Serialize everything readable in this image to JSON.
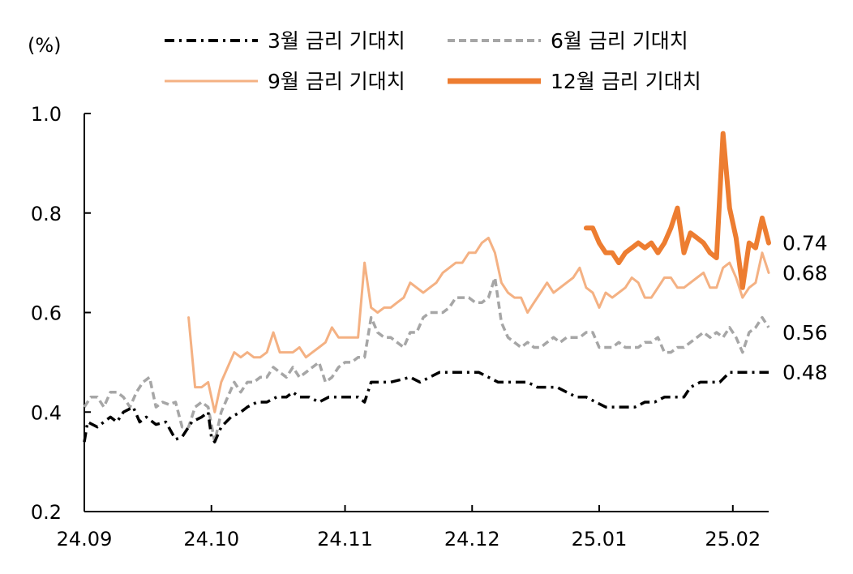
{
  "chart_data": {
    "type": "line",
    "unit": "(%)",
    "ylim": [
      0.2,
      1.0
    ],
    "yticks": [
      "0.2",
      "0.4",
      "0.6",
      "0.8",
      "1.0"
    ],
    "xticks": [
      "24.09",
      "24.10",
      "24.11",
      "24.12",
      "25.01",
      "25.02"
    ],
    "grid": false,
    "legend_position": "top",
    "series": [
      {
        "name": "3월 금리 기대치",
        "color": "#000000",
        "style": "dash-dot",
        "end_label": "0.48",
        "values": [
          [
            0,
            0.34
          ],
          [
            1,
            0.38
          ],
          [
            4,
            0.37
          ],
          [
            6,
            0.38
          ],
          [
            8,
            0.39
          ],
          [
            10,
            0.38
          ],
          [
            12,
            0.4
          ],
          [
            15,
            0.41
          ],
          [
            17,
            0.38
          ],
          [
            19,
            0.39
          ],
          [
            22,
            0.375
          ],
          [
            25,
            0.38
          ],
          [
            28,
            0.345
          ],
          [
            30,
            0.35
          ],
          [
            33,
            0.38
          ],
          [
            36,
            0.39
          ],
          [
            38,
            0.4
          ],
          [
            39,
            0.35
          ],
          [
            40,
            0.34
          ],
          [
            42,
            0.37
          ],
          [
            45,
            0.39
          ],
          [
            48,
            0.4
          ],
          [
            50,
            0.41
          ],
          [
            53,
            0.42
          ],
          [
            56,
            0.42
          ],
          [
            59,
            0.43
          ],
          [
            62,
            0.43
          ],
          [
            64,
            0.44
          ],
          [
            66,
            0.43
          ],
          [
            69,
            0.43
          ],
          [
            72,
            0.42
          ],
          [
            75,
            0.43
          ],
          [
            78,
            0.43
          ],
          [
            81,
            0.43
          ],
          [
            84,
            0.43
          ],
          [
            86,
            0.42
          ],
          [
            88,
            0.46
          ],
          [
            91,
            0.46
          ],
          [
            94,
            0.46
          ],
          [
            97,
            0.465
          ],
          [
            100,
            0.47
          ],
          [
            103,
            0.46
          ],
          [
            106,
            0.47
          ],
          [
            109,
            0.48
          ],
          [
            112,
            0.48
          ],
          [
            115,
            0.48
          ],
          [
            118,
            0.48
          ],
          [
            121,
            0.48
          ],
          [
            124,
            0.47
          ],
          [
            127,
            0.46
          ],
          [
            130,
            0.46
          ],
          [
            133,
            0.46
          ],
          [
            136,
            0.46
          ],
          [
            139,
            0.45
          ],
          [
            142,
            0.45
          ],
          [
            145,
            0.45
          ],
          [
            148,
            0.44
          ],
          [
            151,
            0.43
          ],
          [
            154,
            0.43
          ],
          [
            157,
            0.42
          ],
          [
            160,
            0.41
          ],
          [
            163,
            0.41
          ],
          [
            166,
            0.41
          ],
          [
            169,
            0.41
          ],
          [
            172,
            0.42
          ],
          [
            175,
            0.42
          ],
          [
            178,
            0.43
          ],
          [
            181,
            0.43
          ],
          [
            184,
            0.43
          ],
          [
            186,
            0.45
          ],
          [
            189,
            0.46
          ],
          [
            192,
            0.46
          ],
          [
            195,
            0.46
          ],
          [
            198,
            0.48
          ],
          [
            201,
            0.48
          ],
          [
            204,
            0.48
          ],
          [
            207,
            0.48
          ],
          [
            210,
            0.48
          ]
        ]
      },
      {
        "name": "6월 금리 기대치",
        "color": "#a6a6a6",
        "style": "dashed",
        "end_label": "0.56",
        "values": [
          [
            0,
            0.41
          ],
          [
            2,
            0.43
          ],
          [
            4,
            0.43
          ],
          [
            6,
            0.41
          ],
          [
            8,
            0.44
          ],
          [
            10,
            0.44
          ],
          [
            12,
            0.43
          ],
          [
            14,
            0.41
          ],
          [
            16,
            0.44
          ],
          [
            18,
            0.46
          ],
          [
            20,
            0.47
          ],
          [
            22,
            0.41
          ],
          [
            24,
            0.42
          ],
          [
            26,
            0.415
          ],
          [
            28,
            0.42
          ],
          [
            30,
            0.37
          ],
          [
            32,
            0.37
          ],
          [
            34,
            0.41
          ],
          [
            36,
            0.42
          ],
          [
            38,
            0.41
          ],
          [
            40,
            0.34
          ],
          [
            42,
            0.4
          ],
          [
            44,
            0.43
          ],
          [
            46,
            0.46
          ],
          [
            48,
            0.44
          ],
          [
            50,
            0.46
          ],
          [
            52,
            0.46
          ],
          [
            54,
            0.47
          ],
          [
            56,
            0.47
          ],
          [
            58,
            0.49
          ],
          [
            60,
            0.48
          ],
          [
            62,
            0.47
          ],
          [
            64,
            0.49
          ],
          [
            66,
            0.47
          ],
          [
            68,
            0.48
          ],
          [
            70,
            0.49
          ],
          [
            72,
            0.5
          ],
          [
            74,
            0.46
          ],
          [
            76,
            0.47
          ],
          [
            78,
            0.49
          ],
          [
            80,
            0.5
          ],
          [
            82,
            0.5
          ],
          [
            84,
            0.51
          ],
          [
            86,
            0.51
          ],
          [
            88,
            0.59
          ],
          [
            90,
            0.56
          ],
          [
            92,
            0.55
          ],
          [
            94,
            0.55
          ],
          [
            96,
            0.54
          ],
          [
            98,
            0.53
          ],
          [
            100,
            0.56
          ],
          [
            102,
            0.56
          ],
          [
            104,
            0.59
          ],
          [
            106,
            0.6
          ],
          [
            108,
            0.6
          ],
          [
            110,
            0.6
          ],
          [
            112,
            0.61
          ],
          [
            114,
            0.63
          ],
          [
            116,
            0.63
          ],
          [
            118,
            0.63
          ],
          [
            120,
            0.62
          ],
          [
            122,
            0.62
          ],
          [
            124,
            0.63
          ],
          [
            126,
            0.67
          ],
          [
            128,
            0.58
          ],
          [
            130,
            0.55
          ],
          [
            132,
            0.54
          ],
          [
            134,
            0.53
          ],
          [
            136,
            0.54
          ],
          [
            138,
            0.53
          ],
          [
            140,
            0.53
          ],
          [
            142,
            0.54
          ],
          [
            144,
            0.55
          ],
          [
            146,
            0.54
          ],
          [
            148,
            0.55
          ],
          [
            150,
            0.55
          ],
          [
            152,
            0.55
          ],
          [
            154,
            0.56
          ],
          [
            156,
            0.56
          ],
          [
            158,
            0.53
          ],
          [
            160,
            0.53
          ],
          [
            162,
            0.53
          ],
          [
            164,
            0.54
          ],
          [
            166,
            0.53
          ],
          [
            168,
            0.53
          ],
          [
            170,
            0.53
          ],
          [
            172,
            0.54
          ],
          [
            174,
            0.54
          ],
          [
            176,
            0.55
          ],
          [
            178,
            0.52
          ],
          [
            180,
            0.52
          ],
          [
            182,
            0.53
          ],
          [
            184,
            0.53
          ],
          [
            186,
            0.54
          ],
          [
            188,
            0.55
          ],
          [
            190,
            0.56
          ],
          [
            192,
            0.55
          ],
          [
            194,
            0.56
          ],
          [
            196,
            0.55
          ],
          [
            198,
            0.57
          ],
          [
            200,
            0.55
          ],
          [
            202,
            0.52
          ],
          [
            204,
            0.56
          ],
          [
            206,
            0.57
          ],
          [
            208,
            0.59
          ],
          [
            210,
            0.57
          ]
        ]
      },
      {
        "name": "9월 금리 기대치",
        "color": "#f4b183",
        "style": "solid-thin",
        "end_label": "0.68",
        "values": [
          [
            32,
            0.59
          ],
          [
            34,
            0.45
          ],
          [
            36,
            0.45
          ],
          [
            38,
            0.46
          ],
          [
            40,
            0.4
          ],
          [
            42,
            0.46
          ],
          [
            44,
            0.49
          ],
          [
            46,
            0.52
          ],
          [
            48,
            0.51
          ],
          [
            50,
            0.52
          ],
          [
            52,
            0.51
          ],
          [
            54,
            0.51
          ],
          [
            56,
            0.52
          ],
          [
            58,
            0.56
          ],
          [
            60,
            0.52
          ],
          [
            62,
            0.52
          ],
          [
            64,
            0.52
          ],
          [
            66,
            0.53
          ],
          [
            68,
            0.51
          ],
          [
            70,
            0.52
          ],
          [
            72,
            0.53
          ],
          [
            74,
            0.54
          ],
          [
            76,
            0.57
          ],
          [
            78,
            0.55
          ],
          [
            80,
            0.55
          ],
          [
            82,
            0.55
          ],
          [
            84,
            0.55
          ],
          [
            86,
            0.7
          ],
          [
            88,
            0.61
          ],
          [
            90,
            0.6
          ],
          [
            92,
            0.61
          ],
          [
            94,
            0.61
          ],
          [
            96,
            0.62
          ],
          [
            98,
            0.63
          ],
          [
            100,
            0.66
          ],
          [
            102,
            0.65
          ],
          [
            104,
            0.64
          ],
          [
            106,
            0.65
          ],
          [
            108,
            0.66
          ],
          [
            110,
            0.68
          ],
          [
            112,
            0.69
          ],
          [
            114,
            0.7
          ],
          [
            116,
            0.7
          ],
          [
            118,
            0.72
          ],
          [
            120,
            0.72
          ],
          [
            122,
            0.74
          ],
          [
            124,
            0.75
          ],
          [
            126,
            0.72
          ],
          [
            128,
            0.66
          ],
          [
            130,
            0.64
          ],
          [
            132,
            0.63
          ],
          [
            134,
            0.63
          ],
          [
            136,
            0.6
          ],
          [
            138,
            0.62
          ],
          [
            140,
            0.64
          ],
          [
            142,
            0.66
          ],
          [
            144,
            0.64
          ],
          [
            146,
            0.65
          ],
          [
            148,
            0.66
          ],
          [
            150,
            0.67
          ],
          [
            152,
            0.69
          ],
          [
            154,
            0.65
          ],
          [
            156,
            0.64
          ],
          [
            158,
            0.61
          ],
          [
            160,
            0.64
          ],
          [
            162,
            0.63
          ],
          [
            164,
            0.64
          ],
          [
            166,
            0.65
          ],
          [
            168,
            0.67
          ],
          [
            170,
            0.66
          ],
          [
            172,
            0.63
          ],
          [
            174,
            0.63
          ],
          [
            176,
            0.65
          ],
          [
            178,
            0.67
          ],
          [
            180,
            0.67
          ],
          [
            182,
            0.65
          ],
          [
            184,
            0.65
          ],
          [
            186,
            0.66
          ],
          [
            188,
            0.67
          ],
          [
            190,
            0.68
          ],
          [
            192,
            0.65
          ],
          [
            194,
            0.65
          ],
          [
            196,
            0.69
          ],
          [
            198,
            0.7
          ],
          [
            200,
            0.67
          ],
          [
            202,
            0.63
          ],
          [
            204,
            0.65
          ],
          [
            206,
            0.66
          ],
          [
            208,
            0.72
          ],
          [
            210,
            0.68
          ]
        ]
      },
      {
        "name": "12월 금리 기대치",
        "color": "#ed7d31",
        "style": "solid-thick",
        "end_label": "0.74",
        "values": [
          [
            154,
            0.77
          ],
          [
            156,
            0.77
          ],
          [
            158,
            0.74
          ],
          [
            160,
            0.72
          ],
          [
            162,
            0.72
          ],
          [
            164,
            0.7
          ],
          [
            166,
            0.72
          ],
          [
            168,
            0.73
          ],
          [
            170,
            0.74
          ],
          [
            172,
            0.73
          ],
          [
            174,
            0.74
          ],
          [
            176,
            0.72
          ],
          [
            178,
            0.74
          ],
          [
            180,
            0.77
          ],
          [
            182,
            0.81
          ],
          [
            184,
            0.72
          ],
          [
            186,
            0.76
          ],
          [
            188,
            0.75
          ],
          [
            190,
            0.74
          ],
          [
            192,
            0.72
          ],
          [
            194,
            0.71
          ],
          [
            196,
            0.96
          ],
          [
            198,
            0.81
          ],
          [
            200,
            0.75
          ],
          [
            202,
            0.65
          ],
          [
            204,
            0.74
          ],
          [
            206,
            0.73
          ],
          [
            208,
            0.79
          ],
          [
            210,
            0.74
          ]
        ]
      }
    ]
  },
  "legend": {
    "items": [
      {
        "label": "3월 금리 기대치",
        "icon": "dash-dot-line-icon"
      },
      {
        "label": "6월 금리 기대치",
        "icon": "dashed-line-icon"
      },
      {
        "label": "9월 금리 기대치",
        "icon": "thin-line-icon"
      },
      {
        "label": "12월 금리 기대치",
        "icon": "thick-line-icon"
      }
    ]
  }
}
